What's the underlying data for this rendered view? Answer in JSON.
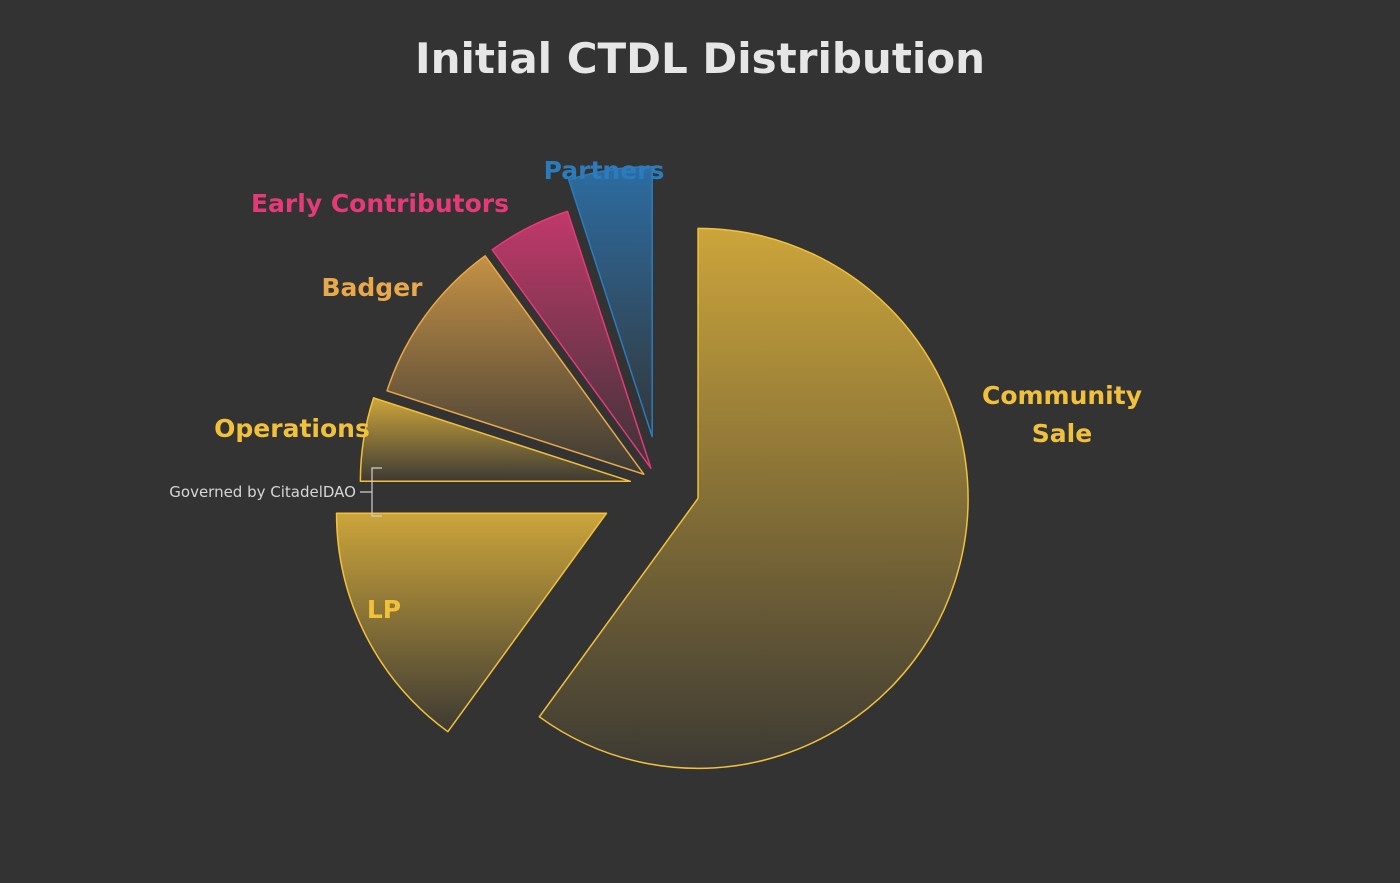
{
  "chart_data": {
    "type": "pie",
    "title": "Initial CTDL Distribution",
    "slices": [
      {
        "label_lines": [
          "Community",
          "Sale"
        ],
        "value": 60,
        "color": "#f2c13c"
      },
      {
        "label_lines": [
          "LP"
        ],
        "value": 15,
        "color": "#f2c13c"
      },
      {
        "label_lines": [
          "Operations"
        ],
        "value": 5,
        "color": "#f2c13c"
      },
      {
        "label_lines": [
          "Badger"
        ],
        "value": 10,
        "color": "#e9a94a"
      },
      {
        "label_lines": [
          "Early Contributors"
        ],
        "value": 5,
        "color": "#e53a78"
      },
      {
        "label_lines": [
          "Partners"
        ],
        "value": 5,
        "color": "#2b7bbd"
      }
    ],
    "annotation": {
      "text": "Governed by CitadelDAO",
      "covers": [
        "Operations",
        "LP"
      ]
    }
  }
}
